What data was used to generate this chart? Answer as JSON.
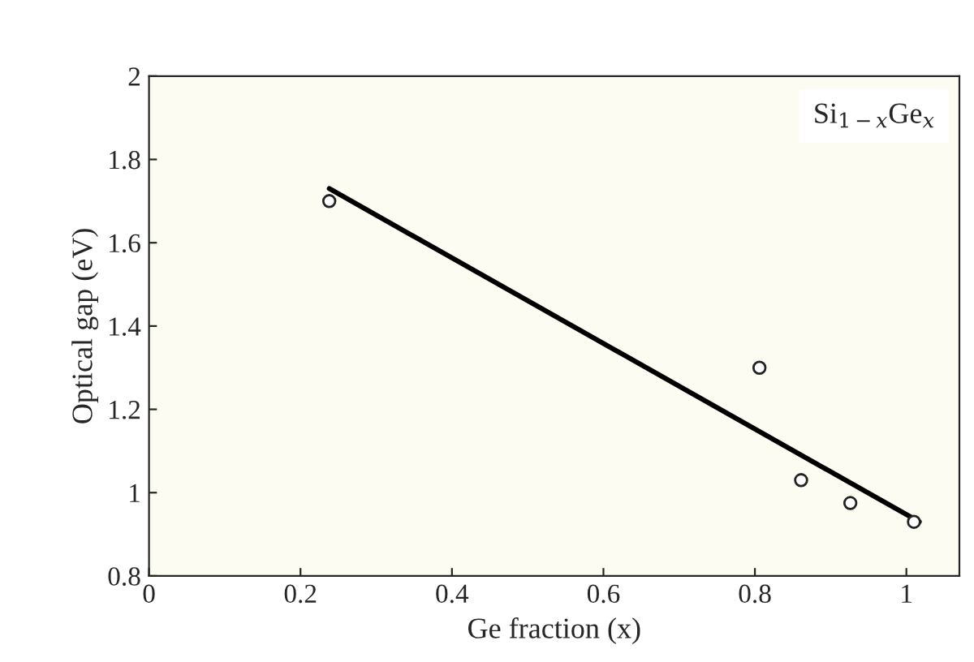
{
  "chart_data": {
    "type": "scatter",
    "xlabel": "Ge fraction (x)",
    "ylabel": "Optical gap (eV)",
    "annotations": [
      "Si$_{1−x}$Ge$_{x}$"
    ],
    "series": [
      {
        "color": "#222222",
        "marker": "circle",
        "x": [
          0.238,
          0.806,
          0.861,
          0.926,
          1.01
        ],
        "values": [
          1.7,
          1.3,
          1.03,
          0.975,
          0.93
        ]
      },
      {
        "type": "line",
        "color": "#000000",
        "x": [
          0.238,
          1.017
        ],
        "values": [
          1.73,
          0.93
        ]
      }
    ],
    "xlim": [
      0,
      1.07
    ],
    "xticks": [
      0,
      0.2,
      0.4,
      0.6,
      0.8,
      1
    ],
    "ylim": [
      0.8,
      2
    ],
    "yticks": [
      0.8,
      1,
      1.2,
      1.4,
      1.6,
      1.8,
      2
    ],
    "grid": false,
    "legend": false
  }
}
